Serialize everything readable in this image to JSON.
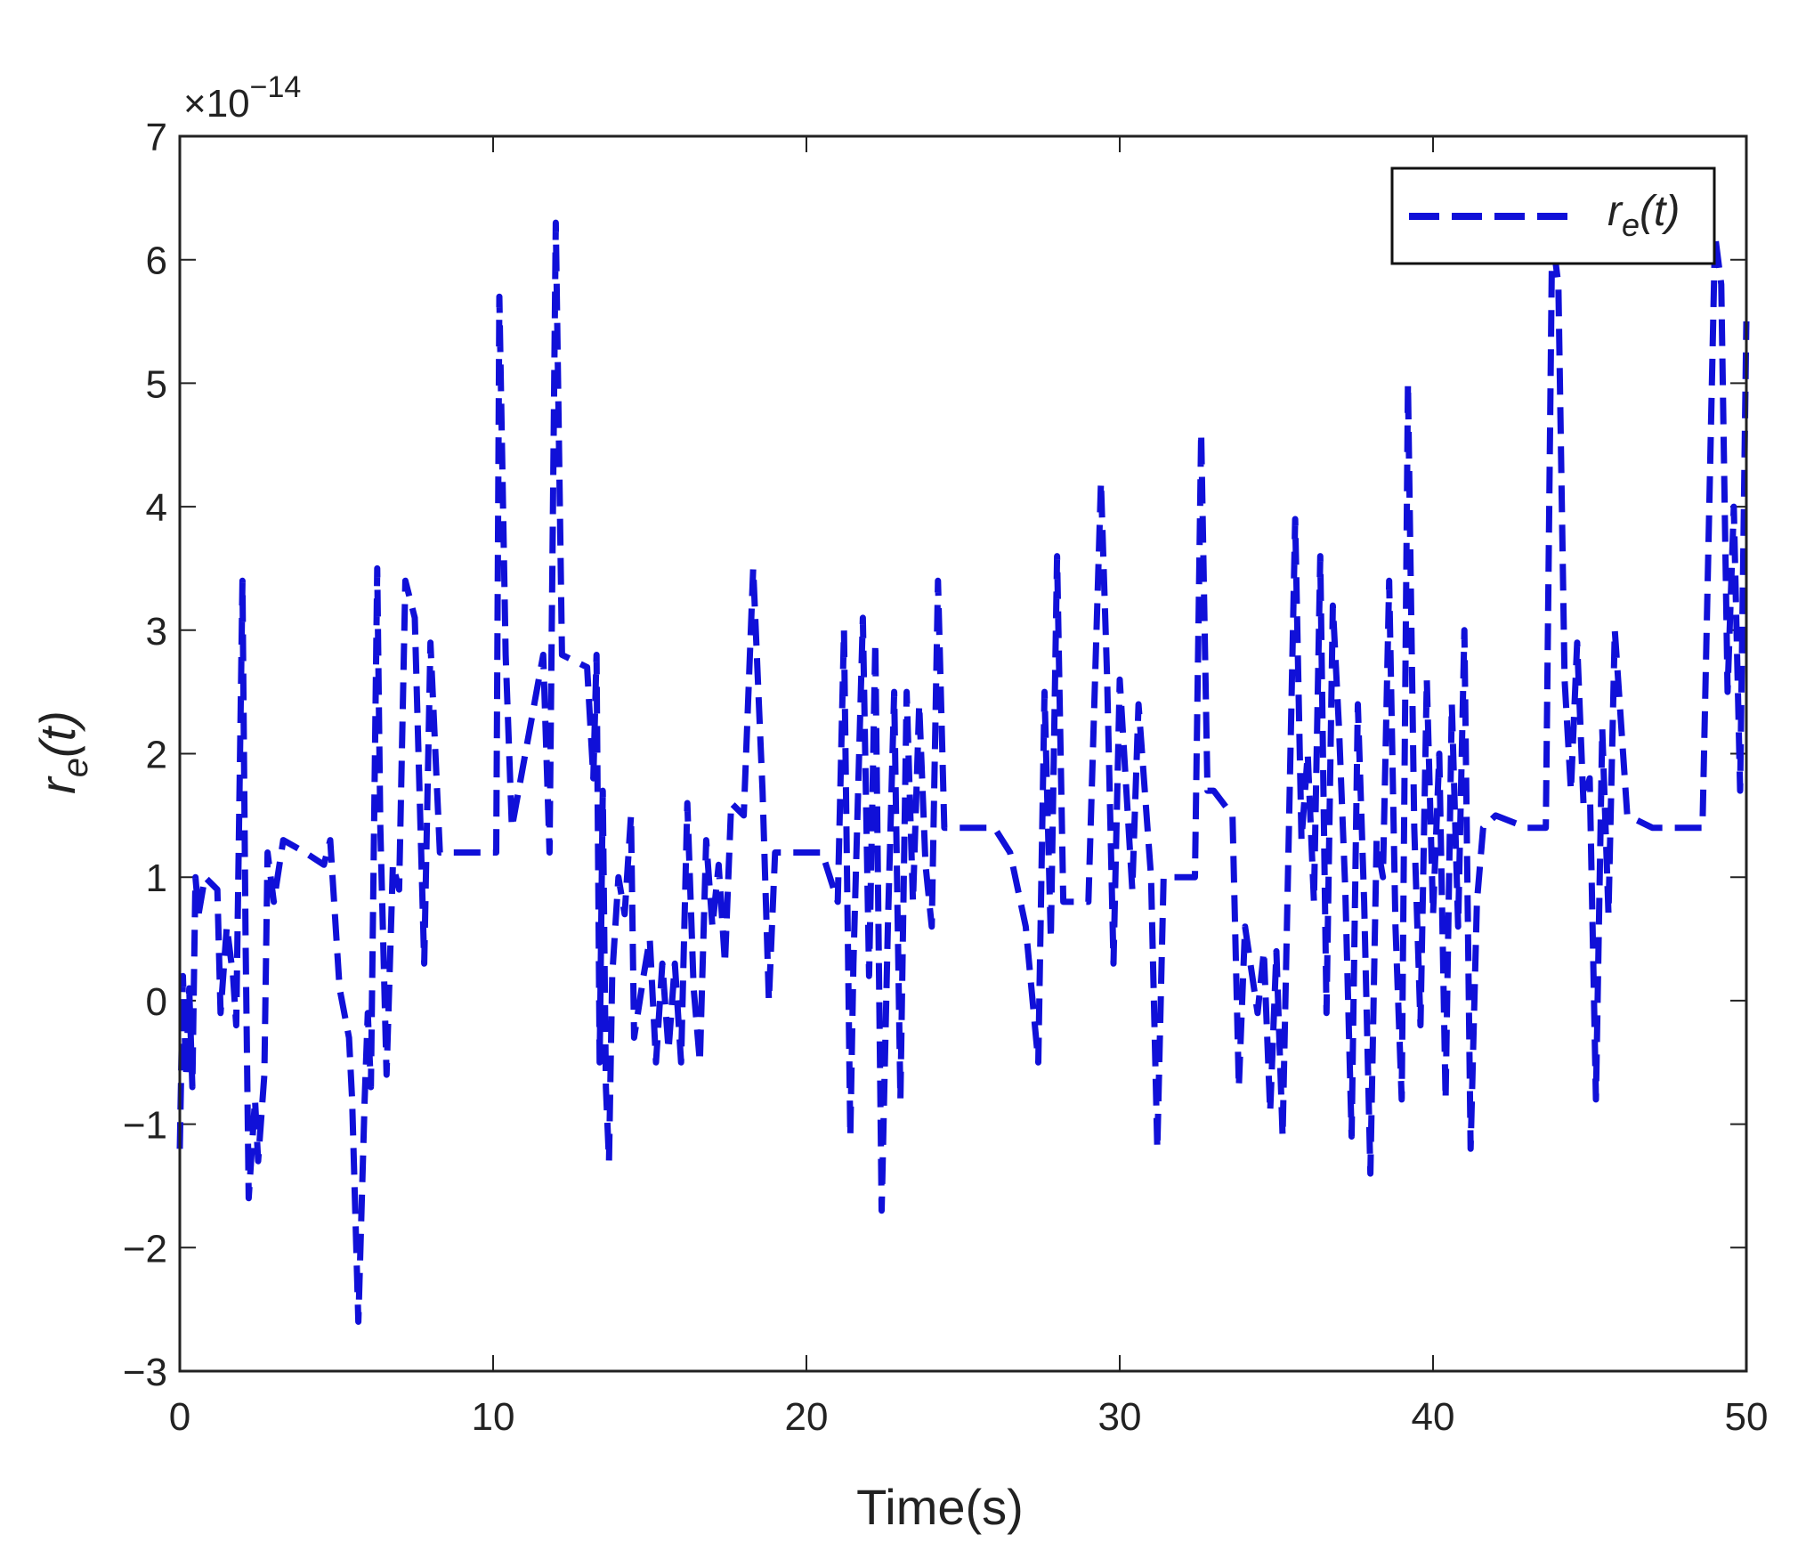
{
  "chart_data": {
    "type": "line",
    "xlabel": "Time(s)",
    "ylabel_main": "r",
    "ylabel_sub": "e",
    "ylabel_arg": "(t)",
    "exponent": {
      "base": "×10",
      "power": "−14"
    },
    "xlim": [
      0,
      50
    ],
    "ylim": [
      -3,
      7
    ],
    "xticks": [
      0,
      10,
      20,
      30,
      40,
      50
    ],
    "yticks": [
      -3,
      -2,
      -1,
      0,
      1,
      2,
      3,
      4,
      5,
      6,
      7
    ],
    "xtick_labels": [
      "0",
      "10",
      "20",
      "30",
      "40",
      "50"
    ],
    "ytick_labels": [
      "−3",
      "−2",
      "−1",
      "0",
      "1",
      "2",
      "3",
      "4",
      "5",
      "6",
      "7"
    ],
    "grid": false,
    "legend_position": "top-right",
    "series": [
      {
        "name_main": "r",
        "name_sub": "e",
        "name_arg": "(t)",
        "color": "#1010d8",
        "style": "dashed",
        "points": [
          [
            0.0,
            -1.2
          ],
          [
            0.1,
            0.2
          ],
          [
            0.2,
            -0.6
          ],
          [
            0.3,
            0.1
          ],
          [
            0.4,
            -0.7
          ],
          [
            0.5,
            1.0
          ],
          [
            0.6,
            0.7
          ],
          [
            0.8,
            1.0
          ],
          [
            1.2,
            0.9
          ],
          [
            1.3,
            -0.1
          ],
          [
            1.5,
            0.6
          ],
          [
            1.7,
            0.2
          ],
          [
            1.8,
            -0.2
          ],
          [
            2.0,
            3.4
          ],
          [
            2.1,
            0.5
          ],
          [
            2.2,
            -1.6
          ],
          [
            2.4,
            -0.8
          ],
          [
            2.5,
            -1.3
          ],
          [
            2.7,
            -0.6
          ],
          [
            2.8,
            1.2
          ],
          [
            3.0,
            0.8
          ],
          [
            3.3,
            1.3
          ],
          [
            4.0,
            1.2
          ],
          [
            4.6,
            1.1
          ],
          [
            4.8,
            1.3
          ],
          [
            4.9,
            0.9
          ],
          [
            5.1,
            0.1
          ],
          [
            5.4,
            -0.3
          ],
          [
            5.5,
            -0.8
          ],
          [
            5.7,
            -2.6
          ],
          [
            5.9,
            -0.8
          ],
          [
            6.0,
            -0.1
          ],
          [
            6.1,
            -0.7
          ],
          [
            6.3,
            3.5
          ],
          [
            6.4,
            1.4
          ],
          [
            6.6,
            -0.6
          ],
          [
            6.8,
            1.1
          ],
          [
            7.0,
            0.9
          ],
          [
            7.2,
            3.4
          ],
          [
            7.5,
            3.1
          ],
          [
            7.8,
            0.3
          ],
          [
            8.0,
            2.9
          ],
          [
            8.3,
            1.2
          ],
          [
            9.0,
            1.2
          ],
          [
            10.1,
            1.2
          ],
          [
            10.2,
            5.7
          ],
          [
            10.4,
            2.8
          ],
          [
            10.6,
            1.4
          ],
          [
            11.6,
            2.8
          ],
          [
            11.8,
            1.2
          ],
          [
            12.0,
            6.3
          ],
          [
            12.2,
            2.8
          ],
          [
            13.0,
            2.7
          ],
          [
            13.2,
            1.8
          ],
          [
            13.3,
            2.8
          ],
          [
            13.4,
            -0.5
          ],
          [
            13.5,
            1.7
          ],
          [
            13.6,
            -0.7
          ],
          [
            13.7,
            -1.3
          ],
          [
            13.8,
            0.2
          ],
          [
            14.0,
            1.0
          ],
          [
            14.2,
            0.7
          ],
          [
            14.4,
            1.5
          ],
          [
            14.5,
            -0.3
          ],
          [
            14.8,
            0.2
          ],
          [
            15.0,
            0.5
          ],
          [
            15.2,
            -0.5
          ],
          [
            15.4,
            0.3
          ],
          [
            15.6,
            -0.4
          ],
          [
            15.8,
            0.3
          ],
          [
            16.0,
            -0.5
          ],
          [
            16.2,
            1.6
          ],
          [
            16.4,
            0.1
          ],
          [
            16.6,
            -0.5
          ],
          [
            16.8,
            1.3
          ],
          [
            17.0,
            0.6
          ],
          [
            17.2,
            1.1
          ],
          [
            17.4,
            0.3
          ],
          [
            17.6,
            1.6
          ],
          [
            18.0,
            1.5
          ],
          [
            18.3,
            3.5
          ],
          [
            18.6,
            1.7
          ],
          [
            18.8,
            0.0
          ],
          [
            19.0,
            1.2
          ],
          [
            20.0,
            1.2
          ],
          [
            20.5,
            1.2
          ],
          [
            21.0,
            0.8
          ],
          [
            21.2,
            3.0
          ],
          [
            21.4,
            -1.1
          ],
          [
            21.5,
            0.3
          ],
          [
            21.8,
            3.1
          ],
          [
            22.0,
            0.2
          ],
          [
            22.2,
            2.9
          ],
          [
            22.4,
            -1.7
          ],
          [
            22.6,
            0.6
          ],
          [
            22.8,
            2.5
          ],
          [
            23.0,
            -0.8
          ],
          [
            23.2,
            2.5
          ],
          [
            23.4,
            0.8
          ],
          [
            23.6,
            2.4
          ],
          [
            23.8,
            1.1
          ],
          [
            24.0,
            0.6
          ],
          [
            24.2,
            3.4
          ],
          [
            24.4,
            1.4
          ],
          [
            25.0,
            1.4
          ],
          [
            26.0,
            1.4
          ],
          [
            26.5,
            1.2
          ],
          [
            27.0,
            0.6
          ],
          [
            27.4,
            -0.5
          ],
          [
            27.6,
            2.5
          ],
          [
            27.8,
            0.5
          ],
          [
            28.0,
            3.6
          ],
          [
            28.2,
            0.8
          ],
          [
            29.0,
            0.8
          ],
          [
            29.4,
            4.2
          ],
          [
            29.6,
            2.6
          ],
          [
            29.8,
            0.3
          ],
          [
            30.0,
            2.6
          ],
          [
            30.4,
            0.9
          ],
          [
            30.6,
            2.4
          ],
          [
            31.0,
            1.0
          ],
          [
            31.2,
            -1.2
          ],
          [
            31.4,
            1.0
          ],
          [
            32.4,
            1.0
          ],
          [
            32.6,
            4.6
          ],
          [
            32.8,
            1.7
          ],
          [
            33.0,
            1.7
          ],
          [
            33.6,
            1.5
          ],
          [
            33.8,
            -0.7
          ],
          [
            34.0,
            0.6
          ],
          [
            34.4,
            -0.1
          ],
          [
            34.6,
            0.4
          ],
          [
            34.8,
            -0.9
          ],
          [
            35.0,
            0.4
          ],
          [
            35.2,
            -1.1
          ],
          [
            35.4,
            1.4
          ],
          [
            35.6,
            3.9
          ],
          [
            35.8,
            1.3
          ],
          [
            36.0,
            2.0
          ],
          [
            36.2,
            0.8
          ],
          [
            36.4,
            3.6
          ],
          [
            36.6,
            -0.1
          ],
          [
            36.8,
            3.2
          ],
          [
            37.0,
            2.2
          ],
          [
            37.2,
            0.9
          ],
          [
            37.4,
            -1.1
          ],
          [
            37.6,
            2.4
          ],
          [
            37.8,
            0.8
          ],
          [
            38.0,
            -1.4
          ],
          [
            38.2,
            1.3
          ],
          [
            38.4,
            1.0
          ],
          [
            38.6,
            3.4
          ],
          [
            38.8,
            0.6
          ],
          [
            39.0,
            -0.8
          ],
          [
            39.2,
            5.0
          ],
          [
            39.4,
            1.4
          ],
          [
            39.6,
            -0.2
          ],
          [
            39.8,
            2.6
          ],
          [
            40.0,
            0.7
          ],
          [
            40.2,
            2.0
          ],
          [
            40.4,
            -0.8
          ],
          [
            40.6,
            2.4
          ],
          [
            40.8,
            0.6
          ],
          [
            41.0,
            3.0
          ],
          [
            41.2,
            -1.2
          ],
          [
            41.4,
            0.8
          ],
          [
            41.6,
            1.4
          ],
          [
            42.0,
            1.5
          ],
          [
            43.0,
            1.4
          ],
          [
            43.6,
            1.4
          ],
          [
            43.8,
            6.2
          ],
          [
            44.0,
            5.8
          ],
          [
            44.2,
            2.6
          ],
          [
            44.4,
            1.7
          ],
          [
            44.6,
            2.9
          ],
          [
            44.8,
            1.6
          ],
          [
            45.0,
            1.8
          ],
          [
            45.2,
            -0.8
          ],
          [
            45.4,
            2.2
          ],
          [
            45.6,
            0.7
          ],
          [
            45.8,
            3.0
          ],
          [
            46.2,
            1.5
          ],
          [
            47.0,
            1.4
          ],
          [
            48.6,
            1.4
          ],
          [
            49.0,
            6.2
          ],
          [
            49.2,
            5.8
          ],
          [
            49.4,
            2.5
          ],
          [
            49.6,
            4.0
          ],
          [
            49.8,
            1.7
          ],
          [
            50.0,
            5.5
          ]
        ]
      }
    ]
  }
}
